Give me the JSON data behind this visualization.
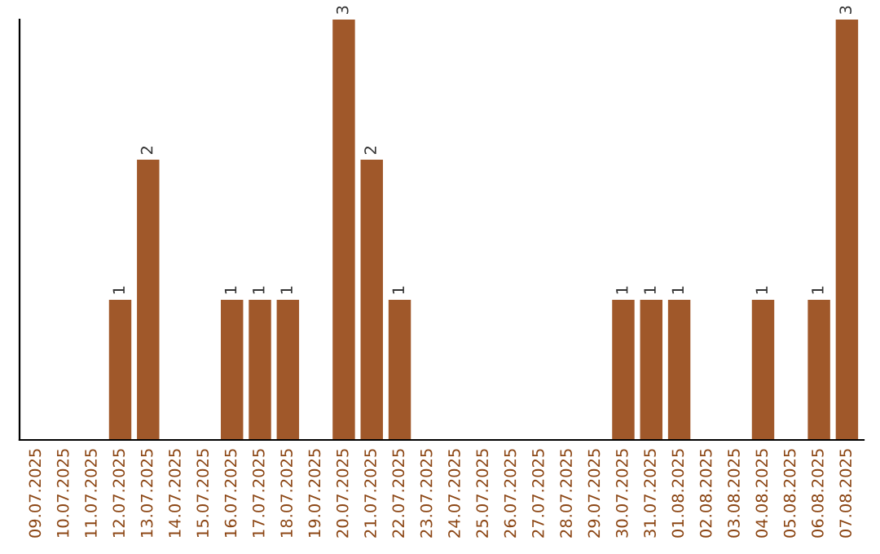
{
  "chart_data": {
    "type": "bar",
    "categories": [
      "09.07.2025",
      "10.07.2025",
      "11.07.2025",
      "12.07.2025",
      "13.07.2025",
      "14.07.2025",
      "15.07.2025",
      "16.07.2025",
      "17.07.2025",
      "18.07.2025",
      "19.07.2025",
      "20.07.2025",
      "21.07.2025",
      "22.07.2025",
      "23.07.2025",
      "24.07.2025",
      "25.07.2025",
      "26.07.2025",
      "27.07.2025",
      "28.07.2025",
      "29.07.2025",
      "30.07.2025",
      "31.07.2025",
      "01.08.2025",
      "02.08.2025",
      "03.08.2025",
      "04.08.2025",
      "05.08.2025",
      "06.08.2025",
      "07.08.2025"
    ],
    "values": [
      0,
      0,
      0,
      1,
      2,
      0,
      0,
      1,
      1,
      1,
      0,
      3,
      2,
      1,
      0,
      0,
      0,
      0,
      0,
      0,
      0,
      1,
      1,
      1,
      0,
      0,
      1,
      0,
      1,
      3
    ],
    "value_labels": [
      null,
      null,
      null,
      "1",
      "2",
      null,
      null,
      "1",
      "1",
      "1",
      null,
      "3",
      "2",
      "1",
      null,
      null,
      null,
      null,
      null,
      null,
      null,
      "1",
      "1",
      "1",
      null,
      null,
      "1",
      null,
      "1",
      "3"
    ],
    "color": "#a0582a",
    "ylim": [
      0,
      3
    ],
    "tick_labels": "x",
    "grid": false,
    "legend": false
  }
}
